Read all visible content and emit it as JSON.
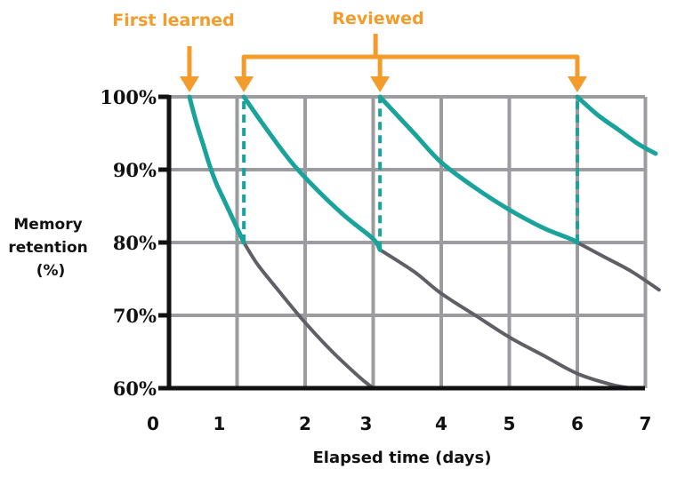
{
  "chart_data": {
    "type": "line",
    "title": "",
    "xlabel": "Elapsed time (days)",
    "ylabel_lines": [
      "Memory",
      "retention",
      "(%)"
    ],
    "x_ticks": [
      {
        "value": 0,
        "label": "0"
      },
      {
        "value": 1,
        "label": "1"
      },
      {
        "value": 2,
        "label": "2"
      },
      {
        "value": 3,
        "label": "3"
      },
      {
        "value": 4,
        "label": "4"
      },
      {
        "value": 5,
        "label": "5"
      },
      {
        "value": 6,
        "label": "6"
      },
      {
        "value": 7,
        "label": "7"
      }
    ],
    "y_ticks": [
      {
        "value": 60,
        "label": "60%"
      },
      {
        "value": 70,
        "label": "70%"
      },
      {
        "value": 80,
        "label": "80%"
      },
      {
        "value": 90,
        "label": "90%"
      },
      {
        "value": 100,
        "label": "100%"
      }
    ],
    "xlim": [
      0,
      7
    ],
    "ylim": [
      60,
      100
    ],
    "grid": true,
    "colors": {
      "retention": "#1aa39a",
      "forgetting": "#5f5f66",
      "grid": "#9b9ba0",
      "axis": "#111111",
      "annotation": "#f39c2b"
    },
    "series": [
      {
        "role": "retention",
        "x": [
          0.3,
          0.4,
          0.5,
          0.6,
          0.7,
          0.8,
          0.9,
          1.0,
          1.1
        ],
        "y": [
          100,
          96.5,
          93.5,
          90.5,
          88,
          86,
          84,
          82,
          80
        ]
      },
      {
        "role": "forgetting",
        "x": [
          1.1,
          1.3,
          1.6,
          2.0,
          2.4,
          2.8,
          3.0
        ],
        "y": [
          80,
          77,
          73.5,
          69,
          65,
          61.5,
          60
        ]
      },
      {
        "role": "retention",
        "x": [
          1.1,
          1.4,
          1.8,
          2.2,
          2.6,
          3.0,
          3.1
        ],
        "y": [
          100,
          96,
          91,
          87,
          83.5,
          80.5,
          79
        ]
      },
      {
        "role": "forgetting",
        "x": [
          3.1,
          3.6,
          4.0,
          4.5,
          5.0,
          5.5,
          6.0,
          6.5,
          6.8
        ],
        "y": [
          79,
          76,
          73,
          70,
          67,
          64.5,
          62,
          60.5,
          60
        ]
      },
      {
        "role": "retention",
        "x": [
          3.1,
          3.6,
          4.0,
          4.5,
          5.0,
          5.5,
          5.9,
          6.0
        ],
        "y": [
          100,
          95,
          91,
          87.5,
          84.5,
          82,
          80.5,
          80
        ]
      },
      {
        "role": "forgetting",
        "x": [
          6.0,
          6.4,
          6.8,
          7.2
        ],
        "y": [
          80,
          78,
          76,
          73.5
        ]
      },
      {
        "role": "retention",
        "x": [
          6.0,
          6.3,
          6.6,
          6.9,
          7.15
        ],
        "y": [
          100,
          97.5,
          95.5,
          93.5,
          92.2
        ]
      }
    ],
    "review_drops": [
      {
        "x": 1.1,
        "from": 80,
        "to": 100
      },
      {
        "x": 3.1,
        "from": 79,
        "to": 100
      },
      {
        "x": 6.0,
        "from": 80,
        "to": 100
      }
    ],
    "annotations": {
      "first_learned": {
        "label": "First learned",
        "x": 0.3
      },
      "reviewed": {
        "label": "Reviewed",
        "xs": [
          1.1,
          3.1,
          6.0
        ]
      }
    }
  }
}
